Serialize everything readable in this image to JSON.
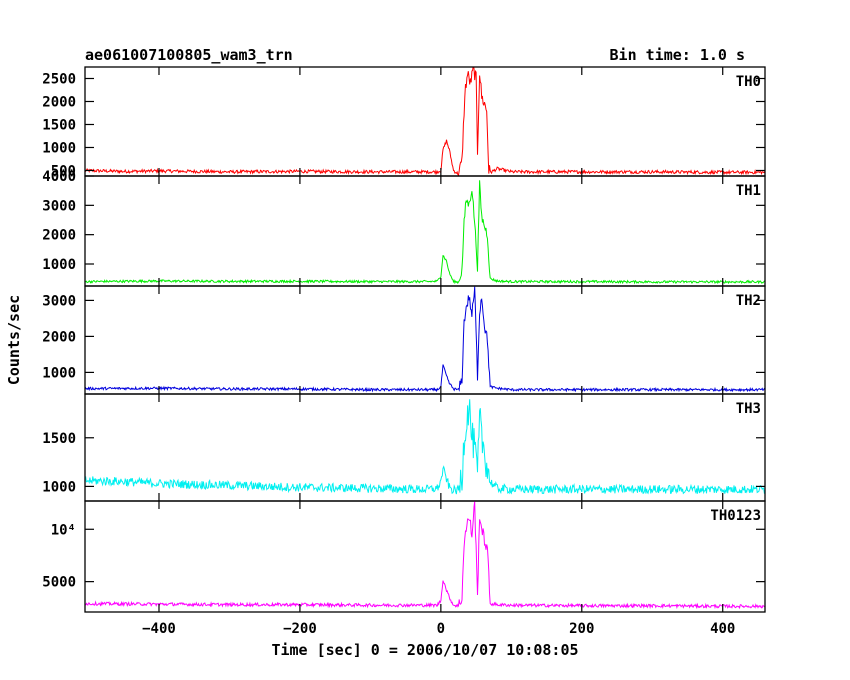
{
  "header": {
    "title": "ae061007100805_wam3_trn",
    "bin_time": "Bin time: 1.0 s"
  },
  "chart_data": {
    "type": "line",
    "xlabel": "Time [sec] 0 = 2006/10/07 10:08:05",
    "ylabel": "Counts/sec",
    "xlim": [
      -505,
      460
    ],
    "xticks": [
      -400,
      -200,
      0,
      200,
      400
    ],
    "xtick_labels": [
      "−400",
      "−200",
      "0",
      "200",
      "400"
    ],
    "grid": false,
    "panels": [
      {
        "name": "TH0",
        "color": "#ff0000",
        "ylim": [
          380,
          2750
        ],
        "yticks": [
          500,
          1000,
          1500,
          2000,
          2500
        ],
        "ytick_labels": [
          "500",
          "1000",
          "1500",
          "2000",
          "2500"
        ],
        "x": [
          -505,
          -450,
          -400,
          -300,
          -200,
          -100,
          -20,
          -5,
          0,
          3,
          8,
          12,
          18,
          25,
          30,
          33,
          35,
          38,
          42,
          46,
          50,
          52,
          55,
          58,
          62,
          65,
          68,
          72,
          80,
          100,
          200,
          300,
          400,
          455
        ],
        "y": [
          500,
          480,
          490,
          470,
          480,
          470,
          470,
          470,
          500,
          950,
          1150,
          950,
          500,
          420,
          700,
          1800,
          2300,
          2600,
          2400,
          2700,
          2500,
          900,
          2650,
          2100,
          1950,
          1800,
          500,
          470,
          540,
          470,
          470,
          470,
          460,
          460
        ],
        "noise": 35
      },
      {
        "name": "TH1",
        "color": "#00ee00",
        "ylim": [
          250,
          4000
        ],
        "yticks": [
          1000,
          2000,
          3000,
          4000
        ],
        "ytick_labels": [
          "1000",
          "2000",
          "3000",
          "4000"
        ],
        "x": [
          -505,
          -400,
          -300,
          -200,
          -100,
          -20,
          -5,
          0,
          3,
          8,
          12,
          18,
          25,
          30,
          33,
          36,
          40,
          44,
          48,
          52,
          55,
          58,
          62,
          66,
          70,
          80,
          100,
          200,
          300,
          400,
          455
        ],
        "y": [
          400,
          420,
          410,
          410,
          400,
          400,
          410,
          600,
          1300,
          1100,
          700,
          400,
          380,
          800,
          2400,
          3200,
          3000,
          3600,
          2400,
          900,
          3700,
          2600,
          2300,
          2000,
          500,
          420,
          400,
          400,
          390,
          390,
          390
        ],
        "noise": 40
      },
      {
        "name": "TH2",
        "color": "#0000dd",
        "ylim": [
          400,
          3400
        ],
        "yticks": [
          1000,
          2000,
          3000
        ],
        "ytick_labels": [
          "1000",
          "2000",
          "3000"
        ],
        "x": [
          -505,
          -400,
          -300,
          -200,
          -100,
          -20,
          -5,
          0,
          3,
          8,
          12,
          18,
          25,
          30,
          33,
          36,
          40,
          44,
          48,
          52,
          55,
          58,
          62,
          66,
          70,
          80,
          100,
          200,
          300,
          400,
          455
        ],
        "y": [
          550,
          560,
          540,
          540,
          520,
          520,
          520,
          600,
          1200,
          900,
          700,
          540,
          520,
          800,
          2400,
          2800,
          3100,
          2600,
          3300,
          900,
          2700,
          3100,
          2300,
          1900,
          600,
          560,
          520,
          520,
          520,
          520,
          520
        ],
        "noise": 35
      },
      {
        "name": "TH3",
        "color": "#00f0f0",
        "ylim": [
          850,
          1950
        ],
        "yticks": [
          1000,
          1500
        ],
        "ytick_labels": [
          "1000",
          "1500"
        ],
        "x": [
          -505,
          -450,
          -400,
          -300,
          -200,
          -100,
          -20,
          -5,
          0,
          3,
          8,
          12,
          18,
          25,
          30,
          33,
          36,
          40,
          44,
          48,
          52,
          55,
          58,
          62,
          66,
          70,
          80,
          100,
          200,
          300,
          400,
          455
        ],
        "y": [
          1060,
          1050,
          1030,
          1010,
          990,
          980,
          970,
          980,
          1050,
          1180,
          1080,
          990,
          960,
          960,
          1100,
          1500,
          1650,
          1850,
          1500,
          1400,
          1100,
          1700,
          1500,
          1350,
          1200,
          1050,
          980,
          970,
          970,
          970,
          970,
          970
        ],
        "noise": 45
      },
      {
        "name": "TH0123",
        "color": "#ff00ff",
        "ylim": [
          2100,
          12700
        ],
        "yticks": [
          5000,
          10000
        ],
        "ytick_labels": [
          "5000",
          "10⁴"
        ],
        "x": [
          -505,
          -400,
          -300,
          -200,
          -100,
          -20,
          -5,
          0,
          3,
          8,
          12,
          18,
          25,
          30,
          33,
          36,
          40,
          44,
          48,
          52,
          55,
          58,
          62,
          66,
          70,
          80,
          100,
          200,
          300,
          400,
          455
        ],
        "y": [
          2900,
          2850,
          2800,
          2800,
          2750,
          2750,
          2750,
          3200,
          5200,
          4200,
          3500,
          2750,
          2700,
          3500,
          8800,
          10000,
          11200,
          9500,
          12500,
          3500,
          11500,
          10000,
          9000,
          8000,
          2900,
          2800,
          2750,
          2700,
          2700,
          2650,
          2650
        ],
        "noise": 150
      }
    ]
  }
}
